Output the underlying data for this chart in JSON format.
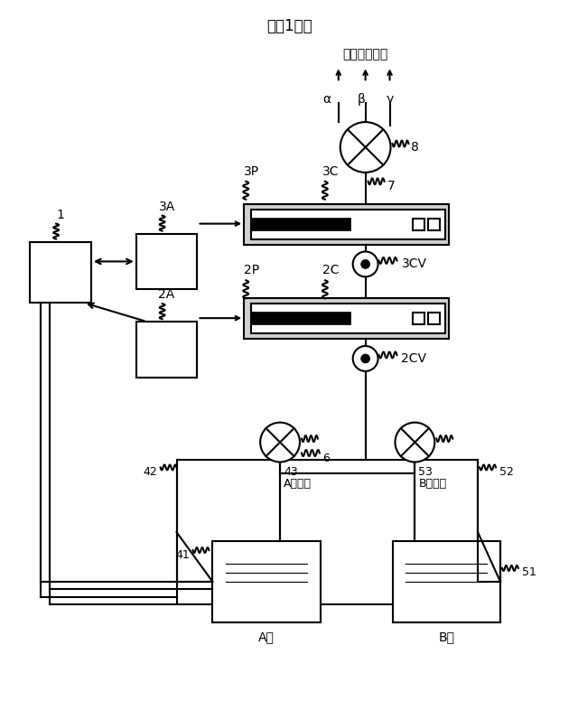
{
  "title": "『図1１』",
  "bg_color": "#ffffff",
  "label_1": "1",
  "label_3A": "3A",
  "label_2A": "2A",
  "label_3P": "3P",
  "label_3C": "3C",
  "label_2P": "2P",
  "label_2C": "2C",
  "label_3CV": "3CV",
  "label_2CV": "2CV",
  "label_7": "7",
  "label_8": "8",
  "label_alpha": "α",
  "label_beta": "β",
  "label_gamma": "γ",
  "label_kokiryu": "後流の装置へ",
  "label_42": "42",
  "label_43": "43",
  "label_6": "6",
  "label_53": "53",
  "label_41": "41",
  "label_51": "51",
  "label_52": "52",
  "label_A_mag": "A電磁弁",
  "label_B_mag": "B電磁弁",
  "label_A_liq": "A液",
  "label_B_liq": "B液"
}
